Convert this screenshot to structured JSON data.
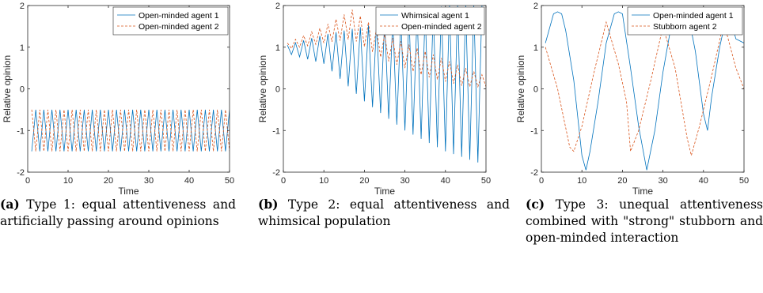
{
  "chart_data": [
    {
      "type": "line",
      "ylabel": "Relative opinion",
      "xlabel": "Time",
      "xlim": [
        0,
        50
      ],
      "ylim": [
        -2,
        2
      ],
      "xticks": [
        0,
        10,
        20,
        30,
        40,
        50
      ],
      "yticks": [
        -2,
        -1,
        0,
        1,
        2
      ],
      "grid": false,
      "legend_position": "top-right",
      "series": [
        {
          "name": "Open-minded agent 1",
          "color": "#0072BD",
          "style": "solid",
          "generator": "alternate",
          "values_pattern": [
            -1.5,
            -0.5
          ],
          "x_range": [
            1,
            50
          ]
        },
        {
          "name": "Open-minded agent 2",
          "color": "#D95319",
          "style": "dashed",
          "generator": "alternate",
          "values_pattern": [
            -0.5,
            -1.5
          ],
          "x_range": [
            1,
            50
          ]
        }
      ],
      "caption": {
        "label": "(a)",
        "text": "Type 1: equal attentiveness and artificially passing around opinions"
      }
    },
    {
      "type": "line",
      "ylabel": "Relative opinion",
      "xlabel": "Time",
      "xlim": [
        0,
        50
      ],
      "ylim": [
        -2,
        2
      ],
      "xticks": [
        0,
        10,
        20,
        30,
        40,
        50
      ],
      "yticks": [
        -2,
        -1,
        0,
        1,
        2
      ],
      "grid": false,
      "legend_position": "top-right",
      "series": [
        {
          "name": "Whimsical agent 1",
          "color": "#0072BD",
          "style": "solid",
          "generator": "oscillation",
          "envelope_x": [
            1,
            10,
            20,
            30,
            40,
            49,
            50
          ],
          "upper": [
            1.05,
            1.3,
            1.5,
            1.75,
            2.0,
            2.0,
            2.0
          ],
          "lower": [
            0.85,
            0.6,
            -0.3,
            -1.0,
            -1.5,
            -1.8,
            2.0
          ]
        },
        {
          "name": "Open-minded agent 2",
          "color": "#D95319",
          "style": "dashed",
          "generator": "oscillation",
          "envelope_x": [
            1,
            10,
            17,
            25,
            35,
            45,
            50
          ],
          "upper": [
            1.1,
            1.5,
            1.9,
            1.3,
            0.9,
            0.5,
            0.3
          ],
          "lower": [
            0.95,
            1.1,
            1.2,
            0.7,
            0.3,
            0.05,
            0.05
          ]
        }
      ],
      "caption": {
        "label": "(b)",
        "text": "Type 2: equal attentiveness and whimsical population"
      }
    },
    {
      "type": "line",
      "ylabel": "Relative opinion",
      "xlabel": "Time",
      "xlim": [
        0,
        50
      ],
      "ylim": [
        -2,
        2
      ],
      "xticks": [
        0,
        10,
        20,
        30,
        40,
        50
      ],
      "yticks": [
        -2,
        -1,
        0,
        1,
        2
      ],
      "grid": false,
      "legend_position": "top-right",
      "series": [
        {
          "name": "Open-minded agent 1",
          "color": "#0072BD",
          "style": "solid",
          "x": [
            1,
            3,
            4,
            5,
            6,
            8,
            10,
            11,
            12,
            14,
            16,
            18,
            19,
            20,
            22,
            24,
            26,
            28,
            30,
            32,
            34,
            36,
            38,
            40,
            41,
            42,
            44,
            46,
            48,
            50
          ],
          "y": [
            1.1,
            1.8,
            1.85,
            1.8,
            1.4,
            0.2,
            -1.6,
            -1.95,
            -1.5,
            -0.3,
            1.1,
            1.8,
            1.85,
            1.8,
            0.5,
            -0.9,
            -1.95,
            -1.0,
            0.4,
            1.5,
            1.9,
            1.9,
            0.9,
            -0.6,
            -1.0,
            -0.2,
            1.0,
            1.9,
            1.2,
            1.1
          ]
        },
        {
          "name": "Stubborn agent 2",
          "color": "#D95319",
          "style": "dashed",
          "x": [
            1,
            4,
            7,
            8,
            10,
            13,
            16,
            19,
            21,
            22,
            24,
            27,
            30,
            33,
            36,
            37,
            39,
            42,
            45,
            48,
            50
          ],
          "y": [
            1.0,
            0.0,
            -1.4,
            -1.5,
            -0.9,
            0.4,
            1.6,
            0.6,
            -0.3,
            -1.5,
            -1.0,
            0.2,
            1.5,
            0.5,
            -1.2,
            -1.6,
            -0.9,
            0.3,
            1.6,
            0.5,
            0.0
          ]
        }
      ],
      "caption": {
        "label": "(c)",
        "text": "Type 3: unequal attentiveness combined with \"strong\" stubborn and open-minded interaction"
      }
    }
  ]
}
